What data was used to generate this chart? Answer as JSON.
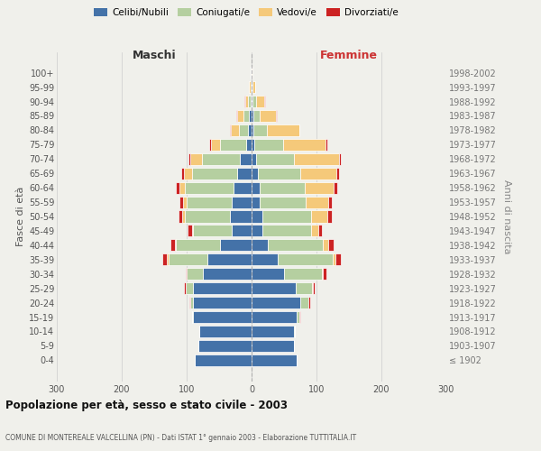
{
  "age_groups": [
    "100+",
    "95-99",
    "90-94",
    "85-89",
    "80-84",
    "75-79",
    "70-74",
    "65-69",
    "60-64",
    "55-59",
    "50-54",
    "45-49",
    "40-44",
    "35-39",
    "30-34",
    "25-29",
    "20-24",
    "15-19",
    "10-14",
    "5-9",
    "0-4"
  ],
  "birth_years": [
    "≤ 1902",
    "1903-1907",
    "1908-1912",
    "1913-1917",
    "1918-1922",
    "1923-1927",
    "1928-1932",
    "1933-1937",
    "1938-1942",
    "1943-1947",
    "1948-1952",
    "1953-1957",
    "1958-1962",
    "1963-1967",
    "1968-1972",
    "1973-1977",
    "1978-1982",
    "1983-1987",
    "1988-1992",
    "1993-1997",
    "1998-2002"
  ],
  "colors": {
    "celibe": "#4472a8",
    "coniugato": "#b5cfa0",
    "vedovo": "#f5c97a",
    "divorziato": "#cc2222"
  },
  "maschi": {
    "celibe": [
      1,
      1,
      2,
      4,
      5,
      8,
      18,
      22,
      28,
      30,
      33,
      30,
      48,
      68,
      75,
      90,
      90,
      90,
      80,
      82,
      88
    ],
    "coniugato": [
      0,
      1,
      3,
      8,
      15,
      40,
      58,
      70,
      75,
      70,
      70,
      60,
      68,
      60,
      25,
      12,
      5,
      2,
      0,
      0,
      0
    ],
    "vedovo": [
      0,
      2,
      5,
      10,
      12,
      15,
      18,
      12,
      8,
      6,
      4,
      2,
      2,
      2,
      0,
      0,
      0,
      0,
      0,
      0,
      0
    ],
    "divorziato": [
      0,
      0,
      1,
      2,
      2,
      2,
      3,
      5,
      5,
      5,
      5,
      7,
      7,
      8,
      2,
      2,
      1,
      0,
      0,
      0,
      0
    ]
  },
  "femmine": {
    "celibe": [
      0,
      1,
      2,
      3,
      3,
      4,
      7,
      10,
      12,
      13,
      16,
      16,
      25,
      40,
      50,
      68,
      75,
      70,
      65,
      65,
      70
    ],
    "coniugato": [
      0,
      1,
      5,
      10,
      20,
      45,
      58,
      65,
      70,
      70,
      75,
      75,
      85,
      85,
      58,
      25,
      12,
      4,
      2,
      0,
      0
    ],
    "vedovo": [
      1,
      4,
      13,
      25,
      50,
      65,
      70,
      55,
      45,
      35,
      25,
      12,
      8,
      4,
      2,
      2,
      1,
      0,
      0,
      0,
      0
    ],
    "divorziato": [
      0,
      0,
      1,
      1,
      1,
      3,
      3,
      5,
      5,
      5,
      8,
      5,
      8,
      8,
      5,
      2,
      2,
      1,
      0,
      0,
      0
    ]
  },
  "xlim": 300,
  "title": "Popolazione per età, sesso e stato civile - 2003",
  "subtitle": "COMUNE DI MONTEREALE VALCELLINA (PN) - Dati ISTAT 1° gennaio 2003 - Elaborazione TUTTITALIA.IT",
  "ylabel_left": "Fasce di età",
  "ylabel_right": "Anni di nascita",
  "xlabel_left": "Maschi",
  "xlabel_right": "Femmine",
  "legend_labels": [
    "Celibi/Nubili",
    "Coniugati/e",
    "Vedovi/e",
    "Divorziati/e"
  ],
  "bg_color": "#f0f0eb",
  "grid_color": "#cccccc"
}
